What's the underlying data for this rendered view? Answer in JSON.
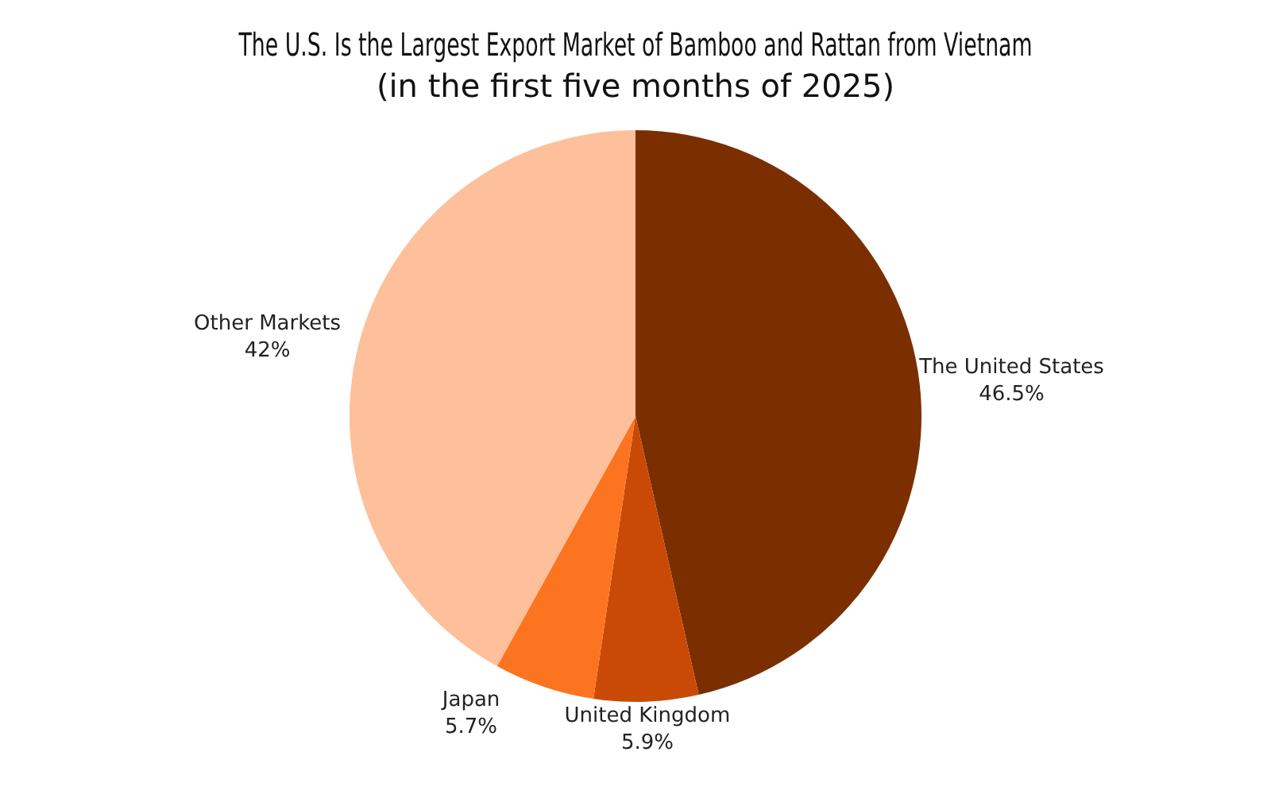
{
  "chart_data": {
    "type": "pie",
    "title": "The U.S. Is the Largest Export Market of Bamboo and Rattan from Vietnam",
    "subtitle": "(in the first five months of 2025)",
    "categories": [
      "The United States",
      "United Kingdom",
      "Japan",
      "Other Markets"
    ],
    "values": [
      46.5,
      5.9,
      5.7,
      42
    ],
    "value_labels": [
      "46.5%",
      "5.9%",
      "5.7%",
      "42%"
    ],
    "colors": [
      "#7b2f00",
      "#c94a06",
      "#fd7420",
      "#fdc09a"
    ],
    "legend": false
  }
}
